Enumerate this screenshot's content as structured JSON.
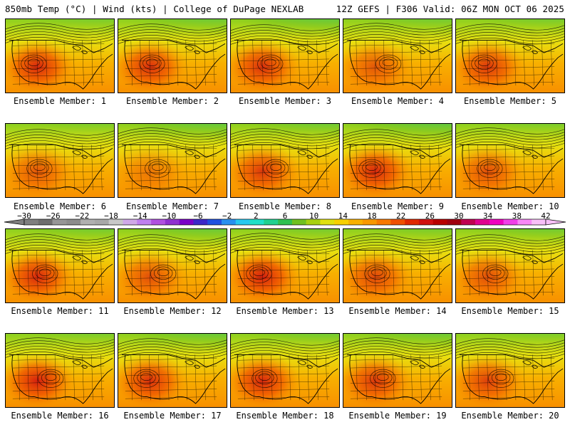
{
  "header": {
    "left_title": "850mb Temp (°C) | Wind (kts) | College of DuPage NEXLAB",
    "right_title": "12Z GEFS | F306 Valid: 06Z MON OCT 06 2025"
  },
  "colorbar": {
    "ticks": [
      "−30",
      "−26",
      "−22",
      "−18",
      "−14",
      "−10",
      "−6",
      "−2",
      "2",
      "6",
      "10",
      "14",
      "18",
      "22",
      "26",
      "30",
      "34",
      "38",
      "42"
    ],
    "colors": [
      "#7f7f7f",
      "#6e6e6e",
      "#969696",
      "#8c8c8c",
      "#b0b0b0",
      "#a8a8a8",
      "#c8c8c8",
      "#d0a8e8",
      "#c080f0",
      "#b050e0",
      "#9030d0",
      "#7a00c8",
      "#3c28c8",
      "#2050e0",
      "#2890f0",
      "#28c8f0",
      "#20e0c8",
      "#20d090",
      "#30c050",
      "#70c020",
      "#a8d010",
      "#e0e010",
      "#f8d000",
      "#f8b000",
      "#f89800",
      "#f87800",
      "#f05000",
      "#e02800",
      "#d01010",
      "#b80000",
      "#a00010",
      "#c00050",
      "#e00090",
      "#f000c0",
      "#f040e8",
      "#f888f8",
      "#f8c0f8"
    ]
  },
  "members": [
    {
      "label": "Ensemble Member: 1",
      "coldness": 0.45,
      "heat": 0.85
    },
    {
      "label": "Ensemble Member: 2",
      "coldness": 0.7,
      "heat": 0.8
    },
    {
      "label": "Ensemble Member: 3",
      "coldness": 0.85,
      "heat": 0.8
    },
    {
      "label": "Ensemble Member: 4",
      "coldness": 0.6,
      "heat": 0.55
    },
    {
      "label": "Ensemble Member: 5",
      "coldness": 0.5,
      "heat": 0.75
    },
    {
      "label": "Ensemble Member: 6",
      "coldness": 0.35,
      "heat": 0.55
    },
    {
      "label": "Ensemble Member: 7",
      "coldness": 0.85,
      "heat": 0.35
    },
    {
      "label": "Ensemble Member: 8",
      "coldness": 0.65,
      "heat": 0.75
    },
    {
      "label": "Ensemble Member: 9",
      "coldness": 0.95,
      "heat": 0.85
    },
    {
      "label": "Ensemble Member: 10",
      "coldness": 0.4,
      "heat": 0.6
    },
    {
      "label": "Ensemble Member: 11",
      "coldness": 0.55,
      "heat": 0.85
    },
    {
      "label": "Ensemble Member: 12",
      "coldness": 0.75,
      "heat": 0.6
    },
    {
      "label": "Ensemble Member: 13",
      "coldness": 0.5,
      "heat": 0.9
    },
    {
      "label": "Ensemble Member: 14",
      "coldness": 0.45,
      "heat": 0.65
    },
    {
      "label": "Ensemble Member: 15",
      "coldness": 0.6,
      "heat": 0.6
    },
    {
      "label": "Ensemble Member: 16",
      "coldness": 0.4,
      "heat": 0.9
    },
    {
      "label": "Ensemble Member: 17",
      "coldness": 0.8,
      "heat": 0.8
    },
    {
      "label": "Ensemble Member: 18",
      "coldness": 0.6,
      "heat": 0.85
    },
    {
      "label": "Ensemble Member: 19",
      "coldness": 0.7,
      "heat": 0.75
    },
    {
      "label": "Ensemble Member: 20",
      "coldness": 0.35,
      "heat": 0.7
    }
  ]
}
